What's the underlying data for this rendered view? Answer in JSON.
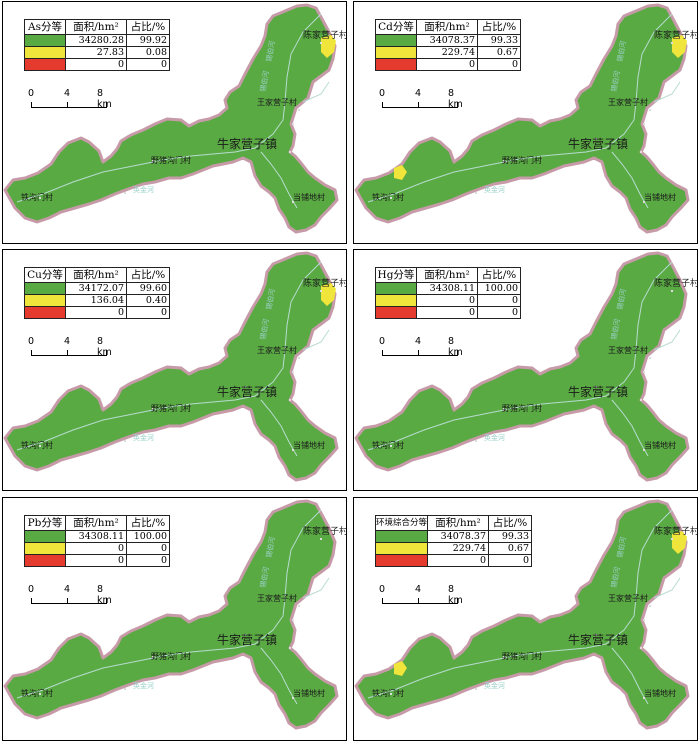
{
  "colors": {
    "green": "#5aaa43",
    "yellow": "#f0e53a",
    "red": "#e53a2e",
    "outline": "#c79aa8",
    "river": "#b6dccf"
  },
  "legend_headers": {
    "area": "面积/hm²",
    "ratio": "占比/%"
  },
  "scale": {
    "t0": "0",
    "t1": "4",
    "t2": "8 km"
  },
  "places": {
    "town": "牛家营子镇",
    "chenjia": "陈家营子村",
    "wangjia": "王家营子村",
    "yezhu": "野猪沟门村",
    "tiegou": "铁沟门村",
    "dangpu": "当铺地村",
    "river1": "锡伯河",
    "river2": "英金河"
  },
  "panels": [
    {
      "title": "As分等",
      "rows": [
        {
          "color": "green",
          "area": "34280.28",
          "ratio": "99.92"
        },
        {
          "color": "yellow",
          "area": "27.83",
          "ratio": "0.08"
        },
        {
          "color": "red",
          "area": "0",
          "ratio": "0"
        }
      ],
      "yellow_patches": [
        "chenjia"
      ]
    },
    {
      "title": "Cd分等",
      "rows": [
        {
          "color": "green",
          "area": "34078.37",
          "ratio": "99.33"
        },
        {
          "color": "yellow",
          "area": "229.74",
          "ratio": "0.67"
        },
        {
          "color": "red",
          "area": "0",
          "ratio": "0"
        }
      ],
      "yellow_patches": [
        "chenjia",
        "tiegou"
      ]
    },
    {
      "title": "Cu分等",
      "rows": [
        {
          "color": "green",
          "area": "34172.07",
          "ratio": "99.60"
        },
        {
          "color": "yellow",
          "area": "136.04",
          "ratio": "0.40"
        },
        {
          "color": "red",
          "area": "0",
          "ratio": "0"
        }
      ],
      "yellow_patches": [
        "chenjia"
      ]
    },
    {
      "title": "Hg分等",
      "rows": [
        {
          "color": "green",
          "area": "34308.11",
          "ratio": "100.00"
        },
        {
          "color": "yellow",
          "area": "0",
          "ratio": "0"
        },
        {
          "color": "red",
          "area": "0",
          "ratio": "0"
        }
      ],
      "yellow_patches": []
    },
    {
      "title": "Pb分等",
      "rows": [
        {
          "color": "green",
          "area": "34308.11",
          "ratio": "100.00"
        },
        {
          "color": "yellow",
          "area": "0",
          "ratio": "0"
        },
        {
          "color": "red",
          "area": "0",
          "ratio": "0"
        }
      ],
      "yellow_patches": []
    },
    {
      "title": "环境综合分等",
      "rows": [
        {
          "color": "green",
          "area": "34078.37",
          "ratio": "99.33"
        },
        {
          "color": "yellow",
          "area": "229.74",
          "ratio": "0.67"
        },
        {
          "color": "red",
          "area": "0",
          "ratio": "0"
        }
      ],
      "yellow_patches": [
        "chenjia",
        "tiegou"
      ]
    }
  ]
}
